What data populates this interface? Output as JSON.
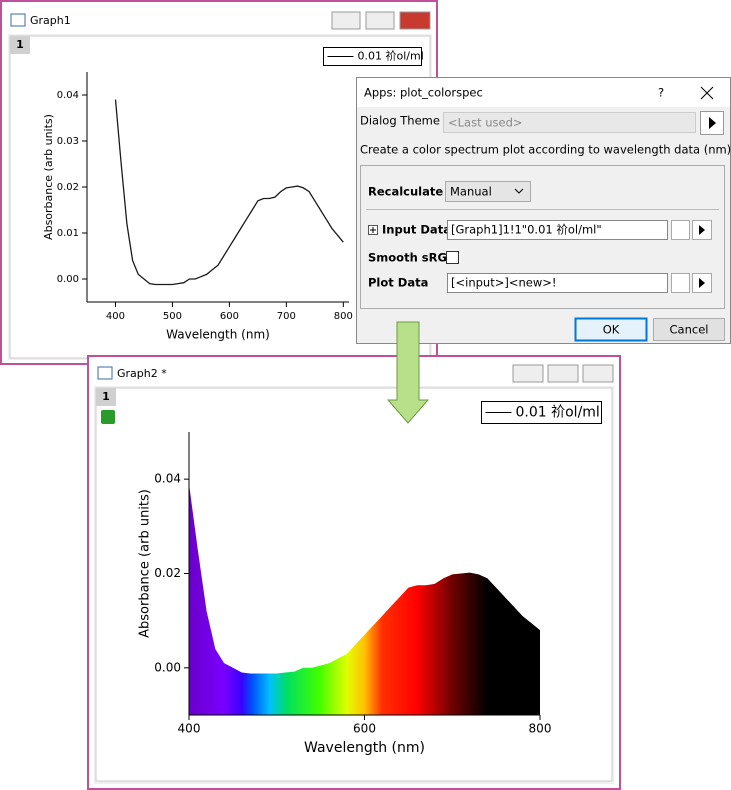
{
  "graph1": {
    "title": "Graph1",
    "layer": "1",
    "chart": {
      "type": "line",
      "legend": "0.01 祄ol/ml",
      "xlabel": "Wavelength (nm)",
      "ylabel": "Absorbance (arb units)",
      "color": "#1a1a1a",
      "x": [
        400,
        410,
        420,
        430,
        440,
        450,
        460,
        470,
        480,
        490,
        500,
        510,
        520,
        530,
        540,
        550,
        560,
        570,
        580,
        590,
        600,
        610,
        620,
        630,
        640,
        650,
        660,
        670,
        680,
        690,
        700,
        710,
        720,
        730,
        740,
        750,
        760,
        770,
        780,
        790,
        800
      ],
      "values": [
        0.039,
        0.025,
        0.012,
        0.004,
        0.001,
        0.0,
        -0.001,
        -0.0012,
        -0.0012,
        -0.0012,
        -0.0012,
        -0.001,
        -0.0008,
        0.0,
        0.0,
        0.0005,
        0.001,
        0.002,
        0.003,
        0.005,
        0.007,
        0.009,
        0.011,
        0.013,
        0.015,
        0.017,
        0.0175,
        0.0175,
        0.0178,
        0.019,
        0.0198,
        0.02,
        0.0202,
        0.0198,
        0.019,
        0.017,
        0.015,
        0.013,
        0.011,
        0.0095,
        0.008
      ],
      "xlim": [
        350,
        810
      ],
      "xticks": [
        400,
        500,
        600,
        700,
        800
      ],
      "ylim": [
        -0.005,
        0.045
      ],
      "yticks": [
        {
          "value": 0,
          "label": "0.00"
        },
        0.01,
        0.02,
        0.03,
        0.04
      ]
    }
  },
  "dialog": {
    "title": "Apps: plot_colorspec",
    "help": "?",
    "theme_label": "Dialog Theme",
    "theme_value": "<Last used>",
    "description": "Create a color spectrum plot according to wavelength data (nm).",
    "recalculate_label": "Recalculate",
    "recalculate_value": "Manual",
    "input_label": "Input Data",
    "input_value": "[Graph1]1!1\"0.01 祄ol/ml\"",
    "smooth_label": "Smooth sRGB",
    "plot_label": "Plot Data",
    "plot_value": "[<input>]<new>!",
    "ok": "OK",
    "cancel": "Cancel"
  },
  "graph2": {
    "title": "Graph2 *",
    "layer": "1",
    "chart": {
      "type": "area",
      "legend": "0.01 祄ol/ml",
      "xlabel": "Wavelength (nm)",
      "ylabel": "Absorbance (arb units)",
      "color": "spectrum",
      "x": [
        400,
        410,
        420,
        430,
        440,
        450,
        460,
        470,
        480,
        490,
        500,
        510,
        520,
        530,
        540,
        550,
        560,
        570,
        580,
        590,
        600,
        610,
        620,
        630,
        640,
        650,
        660,
        670,
        680,
        690,
        700,
        710,
        720,
        730,
        740,
        750,
        760,
        770,
        780,
        790,
        800
      ],
      "values": [
        0.039,
        0.025,
        0.012,
        0.004,
        0.001,
        0.0,
        -0.001,
        -0.0012,
        -0.0012,
        -0.0012,
        -0.0012,
        -0.001,
        -0.0008,
        0.0,
        0.0,
        0.0005,
        0.001,
        0.002,
        0.003,
        0.005,
        0.007,
        0.009,
        0.011,
        0.013,
        0.015,
        0.017,
        0.0175,
        0.0175,
        0.0178,
        0.019,
        0.0198,
        0.02,
        0.0202,
        0.0198,
        0.019,
        0.017,
        0.015,
        0.013,
        0.011,
        0.0095,
        0.008
      ],
      "xlim": [
        400,
        800
      ],
      "xticks": [
        400,
        600,
        800
      ],
      "ylim": [
        -0.01,
        0.05
      ],
      "yticks": [
        {
          "value": 0,
          "label": "0.00"
        },
        0.02,
        0.04
      ]
    }
  }
}
